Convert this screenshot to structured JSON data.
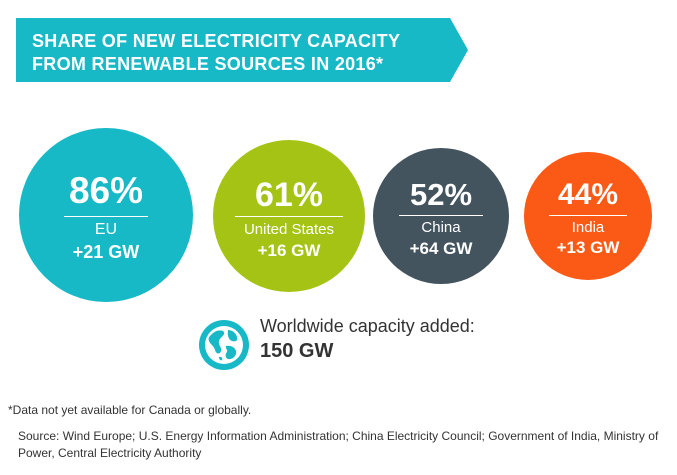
{
  "title_line1": "SHARE OF NEW ELECTRICITY CAPACITY",
  "title_line2": "FROM RENEWABLE SOURCES IN 2016*",
  "chart_data": {
    "type": "bubble",
    "title": "SHARE OF NEW ELECTRICITY CAPACITY FROM RENEWABLE SOURCES IN 2016*",
    "categories": [
      "EU",
      "United States",
      "China",
      "India"
    ],
    "series": [
      {
        "name": "Share of new capacity from renewables",
        "values": [
          86,
          61,
          52,
          44
        ],
        "unit": "%"
      },
      {
        "name": "Renewable capacity added",
        "values": [
          21,
          16,
          64,
          13
        ],
        "unit": "GW"
      }
    ]
  },
  "bubbles": [
    {
      "percent": "86%",
      "region": "EU",
      "gw": "+21 GW",
      "color": "#17b9c6"
    },
    {
      "percent": "61%",
      "region": "United States",
      "gw": "+16 GW",
      "color": "#a5c315"
    },
    {
      "percent": "52%",
      "region": "China",
      "gw": "+64 GW",
      "color": "#44545e"
    },
    {
      "percent": "44%",
      "region": "India",
      "gw": "+13 GW",
      "color": "#fa5a16"
    }
  ],
  "worldwide": {
    "label": "Worldwide capacity added:",
    "value": "150 GW",
    "icon": "globe-icon"
  },
  "footnote": "*Data not yet available for Canada or globally.",
  "source": "Source: Wind Europe; U.S. Energy Information Administration; China Electricity Council; Government of India, Ministry of Power, Central Electricity Authority",
  "colors": {
    "accent": "#17b9c6",
    "text": "#333333"
  }
}
